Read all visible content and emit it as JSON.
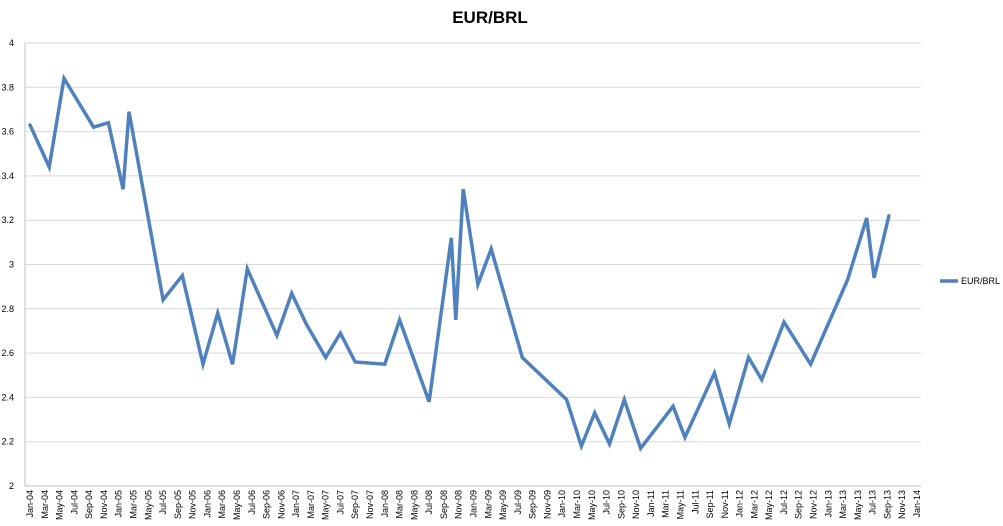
{
  "chart_data": {
    "type": "line",
    "title": "EUR/BRL",
    "xlabel": "",
    "ylabel": "",
    "ylim": [
      2,
      4
    ],
    "yticks": [
      "2",
      "2.2",
      "2.4",
      "2.6",
      "2.8",
      "3",
      "3.2",
      "3.4",
      "3.6",
      "3.8",
      "4"
    ],
    "grid": true,
    "legend_position": "right",
    "categories": [
      "Jan-04",
      "Mar-04",
      "May-04",
      "Jul-04",
      "Sep-04",
      "Nov-04",
      "Jan-05",
      "Mar-05",
      "May-05",
      "Jul-05",
      "Sep-05",
      "Nov-05",
      "Jan-06",
      "Mar-06",
      "May-06",
      "Jul-06",
      "Sep-06",
      "Nov-06",
      "Jan-07",
      "Mar-07",
      "May-07",
      "Jul-07",
      "Sep-07",
      "Nov-07",
      "Jan-08",
      "Mar-08",
      "May-08",
      "Jul-08",
      "Sep-08",
      "Nov-08",
      "Jan-09",
      "Mar-09",
      "May-09",
      "Jul-09",
      "Sep-09",
      "Nov-09",
      "Jan-10",
      "Mar-10",
      "May-10",
      "Jul-10",
      "Sep-10",
      "Nov-10",
      "Jan-11",
      "Mar-11",
      "May-11",
      "Jul-11",
      "Sep-11",
      "Nov-11",
      "Jan-12",
      "Mar-12",
      "May-12",
      "Jul-12",
      "Sep-12",
      "Nov-12",
      "Jan-13",
      "Mar-13",
      "May-13",
      "Jul-13",
      "Sep-13",
      "Nov-13",
      "Jan-14"
    ],
    "series": [
      {
        "name": "EUR/BRL",
        "color": "#4f81bd",
        "x": [
          0,
          1.3,
          2.3,
          4.3,
          5.3,
          6.3,
          6.7,
          9,
          10.3,
          11.7,
          12.7,
          13.7,
          14.7,
          16.7,
          17.7,
          18.7,
          20,
          21,
          22,
          24,
          25,
          27,
          28.5,
          28.8,
          29.3,
          30.3,
          31.2,
          33.3,
          36.3,
          37.3,
          38.2,
          39.2,
          40.2,
          41.3,
          43.5,
          44.3,
          46.3,
          47.3,
          48.6,
          49.5,
          51,
          52.8,
          55.3,
          56.6,
          57.1,
          58.1
        ],
        "values": [
          3.63,
          3.44,
          3.84,
          3.62,
          3.64,
          3.34,
          3.69,
          2.84,
          2.95,
          2.55,
          2.78,
          2.55,
          2.98,
          2.68,
          2.87,
          2.73,
          2.58,
          2.69,
          2.56,
          2.55,
          2.75,
          2.38,
          3.12,
          2.75,
          3.34,
          2.91,
          3.07,
          2.58,
          2.39,
          2.18,
          2.33,
          2.19,
          2.39,
          2.17,
          2.36,
          2.22,
          2.51,
          2.28,
          2.58,
          2.48,
          2.74,
          2.55,
          2.93,
          3.21,
          2.94,
          3.22
        ]
      }
    ]
  }
}
